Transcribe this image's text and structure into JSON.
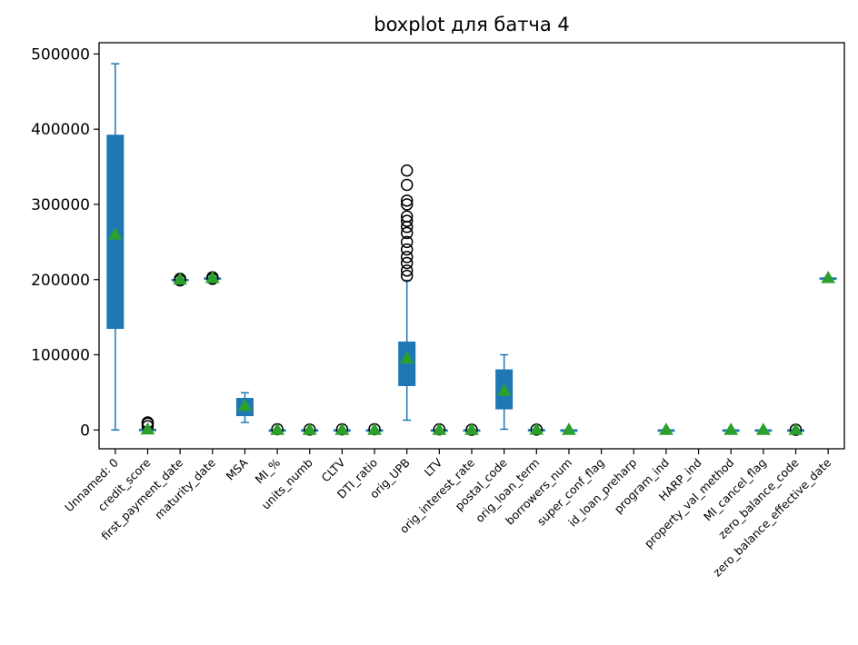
{
  "chart_data": {
    "type": "box",
    "title": "boxplot для батча 4",
    "xlabel": "",
    "ylabel": "",
    "ylim": [
      -25000,
      515000
    ],
    "yticks": [
      0,
      100000,
      200000,
      300000,
      400000,
      500000
    ],
    "ytick_labels": [
      "0",
      "100000",
      "200000",
      "300000",
      "400000",
      "500000"
    ],
    "grid": false,
    "legend": "none",
    "colors": {
      "box": "#1f77b4",
      "mean": "#2ca02c",
      "outlier": "#000000"
    },
    "categories": [
      "Unnamed: 0",
      "credit_score",
      "first_payment_date",
      "maturity_date",
      "MSA",
      "MI_%",
      "units_numb",
      "CLTV",
      "DTI_ratio",
      "orig_UPB",
      "LTV",
      "orig_interest_rate",
      "postal_code",
      "orig_loan_term",
      "borrowers_num",
      "super_conf_flag",
      "id_loan_preharp",
      "program_ind",
      "HARP_ind",
      "property_val_method",
      "MI_cancel_flag",
      "zero_balance_code",
      "zero_balance_effective_date"
    ],
    "boxes": [
      {
        "whislo": 0,
        "q1": 135000,
        "med": 262000,
        "q3": 392000,
        "whishi": 487000,
        "mean": 260000,
        "fliers": []
      },
      {
        "whislo": 550,
        "q1": 700,
        "med": 750,
        "q3": 780,
        "whishi": 830,
        "mean": 740,
        "fliers": [
          5000,
          8500,
          9999
        ]
      },
      {
        "whislo": 199500,
        "q1": 199800,
        "med": 200000,
        "q3": 200200,
        "whishi": 200500,
        "mean": 200000,
        "fliers": [
          199000,
          201000
        ]
      },
      {
        "whislo": 201500,
        "q1": 201800,
        "med": 202000,
        "q3": 202200,
        "whishi": 202500,
        "mean": 202000,
        "fliers": [
          201000,
          203000
        ]
      },
      {
        "whislo": 10000,
        "q1": 19000,
        "med": 32000,
        "q3": 42000,
        "whishi": 49500,
        "mean": 32000,
        "fliers": []
      },
      {
        "whislo": 0,
        "q1": 0,
        "med": 0,
        "q3": 0,
        "whishi": 0,
        "mean": 2,
        "fliers": [
          1000
        ]
      },
      {
        "whislo": 1,
        "q1": 1,
        "med": 1,
        "q3": 1,
        "whishi": 1,
        "mean": 1,
        "fliers": [
          500
        ]
      },
      {
        "whislo": 60,
        "q1": 75,
        "med": 80,
        "q3": 90,
        "whishi": 100,
        "mean": 80,
        "fliers": [
          800
        ]
      },
      {
        "whislo": 20,
        "q1": 30,
        "med": 36,
        "q3": 42,
        "whishi": 50,
        "mean": 36,
        "fliers": [
          999
        ]
      },
      {
        "whislo": 13000,
        "q1": 59000,
        "med": 90000,
        "q3": 117000,
        "whishi": 199000,
        "mean": 95000,
        "fliers": [
          205000,
          212000,
          222000,
          230000,
          240000,
          250000,
          262000,
          270000,
          278000,
          284000,
          300000,
          305000,
          326000,
          345000
        ]
      },
      {
        "whislo": 60,
        "q1": 75,
        "med": 80,
        "q3": 90,
        "whishi": 100,
        "mean": 80,
        "fliers": [
          800
        ]
      },
      {
        "whislo": 3,
        "q1": 4,
        "med": 4.5,
        "q3": 5,
        "whishi": 6,
        "mean": 4.5,
        "fliers": [
          300
        ]
      },
      {
        "whislo": 1000,
        "q1": 28000,
        "med": 52000,
        "q3": 80000,
        "whishi": 100000,
        "mean": 52000,
        "fliers": []
      },
      {
        "whislo": 180,
        "q1": 360,
        "med": 360,
        "q3": 360,
        "whishi": 360,
        "mean": 330,
        "fliers": [
          480
        ]
      },
      {
        "whislo": 1,
        "q1": 1,
        "med": 2,
        "q3": 2,
        "whishi": 2,
        "mean": 1.5,
        "fliers": []
      },
      null,
      null,
      {
        "whislo": 9,
        "q1": 9,
        "med": 9,
        "q3": 9,
        "whishi": 9,
        "mean": 9,
        "fliers": []
      },
      null,
      {
        "whislo": 1,
        "q1": 2,
        "med": 2,
        "q3": 2,
        "whishi": 3,
        "mean": 2,
        "fliers": []
      },
      {
        "whislo": 0,
        "q1": 0,
        "med": 0,
        "q3": 0,
        "whishi": 0,
        "mean": 0,
        "fliers": []
      },
      {
        "whislo": 1,
        "q1": 1,
        "med": 1,
        "q3": 1,
        "whishi": 1,
        "mean": 2,
        "fliers": [
          300
        ]
      },
      {
        "whislo": 201500,
        "q1": 201800,
        "med": 202000,
        "q3": 202200,
        "whishi": 202500,
        "mean": 202000,
        "fliers": []
      }
    ]
  }
}
